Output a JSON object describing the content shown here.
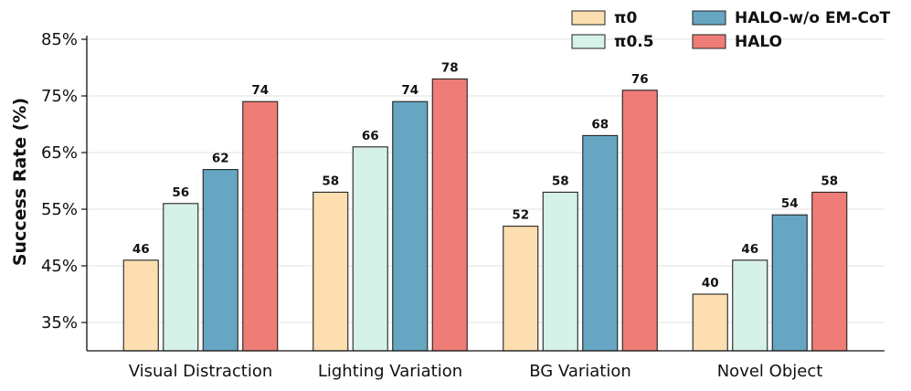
{
  "chart_data": {
    "type": "bar",
    "title": "",
    "xlabel": "",
    "ylabel": "Success Rate (%)",
    "ylim": [
      29.5,
      85
    ],
    "yticks": [
      35,
      45,
      55,
      65,
      75,
      85
    ],
    "ytick_labels": [
      "35%",
      "45%",
      "55%",
      "65%",
      "75%",
      "85%"
    ],
    "grid": "horizontal",
    "legend_position": "top-right",
    "categories": [
      "Visual Distraction",
      "Lighting Variation",
      "BG Variation",
      "Novel Object"
    ],
    "series": [
      {
        "name": "π0",
        "color": "#FDDEB0",
        "values": [
          46,
          58,
          52,
          40
        ]
      },
      {
        "name": "π0.5",
        "color": "#D6F1E8",
        "values": [
          56,
          66,
          58,
          46
        ]
      },
      {
        "name": "HALO-w/o EM-CoT",
        "color": "#66A6C2",
        "values": [
          62,
          74,
          68,
          54
        ]
      },
      {
        "name": "HALO",
        "color": "#EF7D77",
        "values": [
          74,
          78,
          76,
          58
        ]
      }
    ]
  }
}
